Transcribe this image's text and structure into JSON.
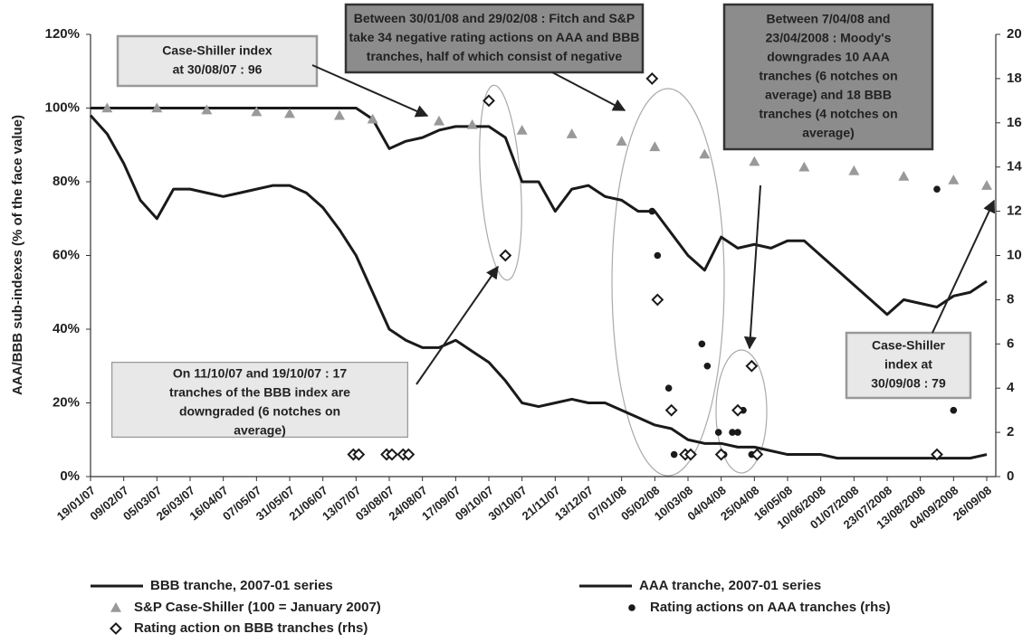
{
  "chart_data": {
    "type": "line",
    "y_label": "AAA/BBB sub-indexes (% of the face value)",
    "categories": [
      "19/01/07",
      null,
      "09/02/07",
      null,
      "05/03/07",
      null,
      "26/03/07",
      null,
      "16/04/07",
      null,
      "07/05/07",
      null,
      "31/05/07",
      null,
      "21/06/07",
      null,
      "13/07/07",
      null,
      "03/08/07",
      null,
      "24/08/07",
      null,
      "17/09/07",
      null,
      "09/10/07",
      null,
      "30/10/07",
      null,
      "21/11/07",
      null,
      "13/12/07",
      null,
      "07/01/08",
      null,
      "05/02/08",
      null,
      "10/03/08",
      null,
      "04/04/08",
      null,
      "25/04/08",
      null,
      "16/05/08",
      null,
      "10/06/2008",
      null,
      "01/07/2008",
      null,
      "23/07/2008",
      null,
      "13/08/2008",
      null,
      "04/09/2008",
      null,
      "26/09/08"
    ],
    "ylim": [
      0,
      120
    ],
    "yticks": [
      {
        "value": 0,
        "label": "0%"
      },
      {
        "value": 20,
        "label": "20%"
      },
      {
        "value": 40,
        "label": "40%"
      },
      {
        "value": 60,
        "label": "60%"
      },
      {
        "value": 80,
        "label": "80%"
      },
      {
        "value": 100,
        "label": "100%"
      },
      {
        "value": 120,
        "label": "120%"
      }
    ],
    "y2lim": [
      0,
      20
    ],
    "y2ticks": [
      0,
      2,
      4,
      6,
      8,
      10,
      12,
      14,
      16,
      18,
      20
    ],
    "series": [
      {
        "name": "BBB tranche, 2007-01 series",
        "kind": "line",
        "color": "#1a1a1a",
        "values": [
          98,
          93,
          85,
          75,
          70,
          78,
          78,
          77,
          76,
          77,
          78,
          79,
          79,
          77,
          73,
          67,
          60,
          50,
          40,
          37,
          35,
          35,
          37,
          34,
          31,
          26,
          20,
          19,
          20,
          21,
          20,
          20,
          18,
          16,
          14,
          13,
          10,
          9,
          9,
          8,
          8,
          7,
          6,
          6,
          6,
          5,
          5,
          5,
          5,
          5,
          5,
          5,
          5,
          5,
          6
        ]
      },
      {
        "name": "AAA tranche, 2007-01 series",
        "kind": "line",
        "color": "#1a1a1a",
        "values": [
          100,
          100,
          100,
          100,
          100,
          100,
          100,
          100,
          100,
          100,
          100,
          100,
          100,
          100,
          100,
          100,
          100,
          97,
          89,
          91,
          92,
          94,
          95,
          95,
          95,
          92,
          80,
          80,
          72,
          78,
          79,
          76,
          75,
          72,
          72,
          66,
          60,
          56,
          65,
          62,
          63,
          62,
          64,
          64,
          60,
          56,
          52,
          48,
          44,
          48,
          47,
          46,
          49,
          50,
          53
        ]
      },
      {
        "name": "S&P Case-Shiller (100 = January 2007)",
        "kind": "triangle",
        "color": "#999999",
        "values": [
          null,
          100,
          null,
          null,
          100,
          null,
          null,
          99.5,
          null,
          null,
          99,
          null,
          98.5,
          null,
          null,
          98,
          null,
          97,
          null,
          null,
          null,
          96.5,
          null,
          95.5,
          null,
          null,
          94,
          null,
          null,
          93,
          null,
          null,
          91,
          null,
          89.5,
          null,
          null,
          87.5,
          null,
          null,
          85.5,
          null,
          null,
          84,
          null,
          null,
          83,
          null,
          null,
          81.5,
          null,
          null,
          80.5,
          null,
          79
        ]
      },
      {
        "name": "Rating actions on AAA tranches (rhs)",
        "kind": "dot",
        "color": "#1a1a1a",
        "axis": "y2",
        "values": [
          null,
          null,
          null,
          null,
          null,
          null,
          null,
          null,
          null,
          null,
          null,
          null,
          null,
          null,
          null,
          null,
          null,
          null,
          null,
          null,
          null,
          null,
          null,
          null,
          null,
          null,
          null,
          null,
          null,
          null,
          null,
          null,
          null,
          null,
          [
            12,
            10
          ],
          [
            4,
            1
          ],
          [
            1,
            1
          ],
          [
            6,
            5
          ],
          [
            2,
            1
          ],
          [
            2,
            2,
            3
          ],
          [
            1,
            1
          ],
          null,
          null,
          null,
          null,
          null,
          null,
          null,
          null,
          null,
          null,
          [
            13
          ],
          [
            3
          ],
          null,
          null
        ]
      },
      {
        "name": "Rating action on BBB tranches (rhs)",
        "kind": "diamond",
        "color": "#1a1a1a",
        "axis": "y2",
        "values": [
          null,
          null,
          null,
          null,
          null,
          null,
          null,
          null,
          null,
          null,
          null,
          null,
          null,
          null,
          null,
          null,
          [
            1,
            1
          ],
          null,
          [
            1,
            1
          ],
          [
            1,
            1
          ],
          null,
          null,
          null,
          null,
          [
            17
          ],
          [
            10
          ],
          null,
          null,
          null,
          null,
          null,
          null,
          null,
          null,
          [
            18,
            8
          ],
          [
            3
          ],
          [
            1,
            1
          ],
          null,
          [
            1
          ],
          [
            3
          ],
          [
            5,
            1
          ],
          null,
          null,
          null,
          null,
          null,
          null,
          null,
          null,
          null,
          null,
          [
            1
          ],
          null,
          null,
          null
        ]
      }
    ],
    "annotations": [
      {
        "lines": [
          "Case-Shiller index",
          "at 30/08/07 : 96"
        ]
      },
      {
        "lines": [
          "Between 30/01/08 and 29/02/08 : Fitch and S&P",
          "take 34 negative rating actions on AAA and BBB",
          "tranches, half of which consist of negative"
        ]
      },
      {
        "lines": [
          "Between 7/04/08 and",
          "23/04/2008 : Moody's",
          "downgrades 10 AAA",
          "tranches (6 notches on",
          "average) and 18 BBB",
          "tranches (4 notches on",
          "average)"
        ]
      },
      {
        "lines": [
          "On 11/10/07 and 19/10/07 : 17",
          "tranches of the BBB index are",
          "downgraded      (6 notches on",
          "average)"
        ]
      },
      {
        "lines": [
          "Case-Shiller",
          "index at",
          "30/09/08 : 79"
        ]
      }
    ]
  }
}
